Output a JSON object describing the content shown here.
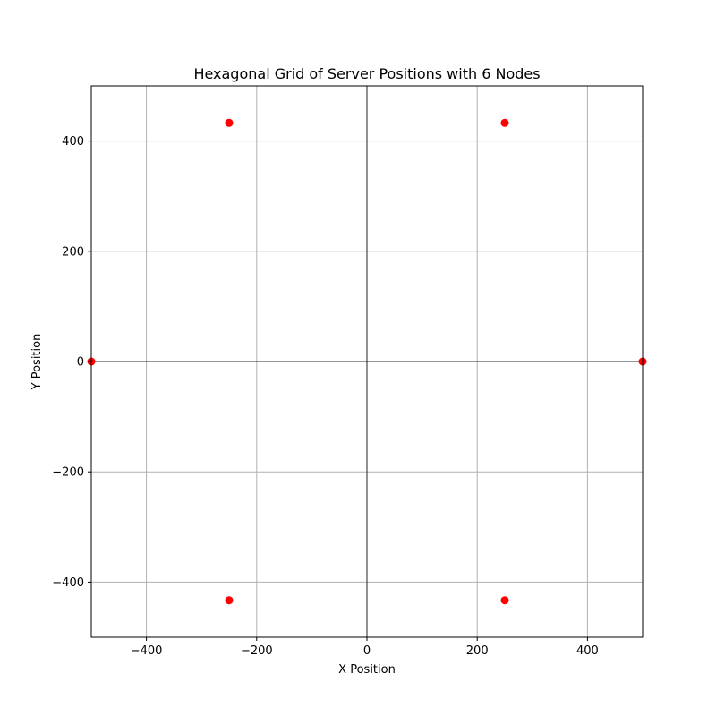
{
  "chart_data": {
    "type": "scatter",
    "title": "Hexagonal Grid of Server Positions with 6 Nodes",
    "xlabel": "X Position",
    "ylabel": "Y Position",
    "xlim": [
      -500,
      500
    ],
    "ylim": [
      -500,
      500
    ],
    "x_ticks": [
      -400,
      -200,
      0,
      200,
      400
    ],
    "y_ticks": [
      -400,
      -200,
      0,
      200,
      400
    ],
    "x_tick_labels": [
      "−400",
      "−200",
      "0",
      "200",
      "400"
    ],
    "y_tick_labels": [
      "−400",
      "−200",
      "0",
      "200",
      "400"
    ],
    "grid": true,
    "zero_axis_lines": true,
    "marker_color": "#ff0000",
    "points": [
      {
        "x": 500,
        "y": 0
      },
      {
        "x": 250,
        "y": 433
      },
      {
        "x": -250,
        "y": 433
      },
      {
        "x": -500,
        "y": 0
      },
      {
        "x": -250,
        "y": -433
      },
      {
        "x": 250,
        "y": -433
      }
    ]
  }
}
